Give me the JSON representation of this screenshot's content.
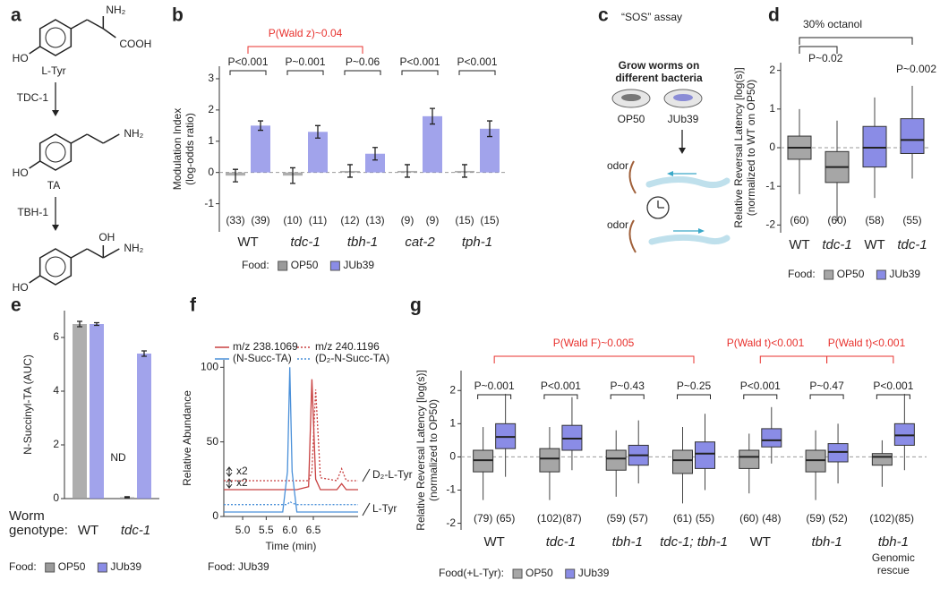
{
  "panel_labels": [
    "a",
    "b",
    "c",
    "d",
    "e",
    "f",
    "g"
  ],
  "pathway": {
    "compounds": [
      {
        "name": "L-Tyr",
        "substituents": [
          "NH₂",
          "COOH",
          "HO"
        ]
      },
      {
        "name": "TA",
        "substituents": [
          "NH₂",
          "HO"
        ]
      },
      {
        "substituents": [
          "OH",
          "NH₂",
          "HO"
        ]
      }
    ],
    "enzymes": [
      "TDC-1",
      "TBH-1"
    ]
  },
  "assay": {
    "title": "“SOS” assay",
    "step": [
      "Grow worms on",
      "different bacteria"
    ],
    "plates": [
      "OP50",
      "JUb39"
    ],
    "odor_labels": [
      "odor",
      "odor"
    ]
  },
  "chart_data": [
    {
      "panel": "b",
      "type": "bar",
      "ylabel": [
        "Modulation Index",
        "(log-odds ratio)"
      ],
      "categories": [
        "WT",
        "tdc-1",
        "tbh-1",
        "cat-2",
        "tph-1"
      ],
      "category_italic": [
        false,
        true,
        true,
        true,
        true
      ],
      "series": [
        {
          "name": "OP50",
          "color": "#9a9a9a",
          "values": [
            -0.1,
            -0.1,
            0.05,
            0.05,
            0.05
          ],
          "errors": [
            0.2,
            0.25,
            0.2,
            0.2,
            0.2
          ],
          "n_labels": [
            "(33)",
            "(10)",
            "(12)",
            "(9)",
            "(15)"
          ]
        },
        {
          "name": "JUb39",
          "color": "#8a8ce6",
          "values": [
            1.5,
            1.3,
            0.6,
            1.8,
            1.4
          ],
          "errors": [
            0.15,
            0.2,
            0.2,
            0.25,
            0.25
          ],
          "n_labels": [
            "(39)",
            "(11)",
            "(13)",
            "(9)",
            "(15)"
          ]
        }
      ],
      "ylim": [
        -1.9,
        3.4
      ],
      "yticks": [
        -1,
        0,
        1,
        2,
        3
      ],
      "pvalues": [
        "P<0.001",
        "P~0.001",
        "P~0.06",
        "P<0.001",
        "P<0.001"
      ],
      "comparisons": [
        "P(Wald z)~0.04"
      ],
      "comparison_color": "#e8322e",
      "legend_title": "Food:"
    },
    {
      "panel": "d",
      "type": "box",
      "title": "30% octanol",
      "ylabel": [
        "Relative Reversal Latency [log(s)]",
        "(normalized to  WT on OP50)"
      ],
      "categories": [
        "WT",
        "tdc-1",
        "WT",
        "tdc-1"
      ],
      "category_italic": [
        false,
        true,
        false,
        true
      ],
      "series": [
        {
          "name": "OP50",
          "color": "#a6a6a6",
          "boxes": [
            {
              "low": -1.2,
              "q1": -0.3,
              "median": 0,
              "q3": 0.3,
              "high": 1.0
            },
            {
              "low": -1.9,
              "q1": -0.9,
              "median": -0.5,
              "q3": -0.1,
              "high": 0.7
            },
            null,
            null
          ],
          "n_labels": [
            "(60)",
            "(60)",
            null,
            null
          ]
        },
        {
          "name": "JUb39",
          "color": "#8a8ce6",
          "boxes": [
            null,
            null,
            {
              "low": -1.3,
              "q1": -0.5,
              "median": 0,
              "q3": 0.55,
              "high": 1.3
            },
            {
              "low": -0.8,
              "q1": -0.15,
              "median": 0.2,
              "q3": 0.75,
              "high": 1.6
            }
          ],
          "n_labels": [
            null,
            null,
            "(58)",
            "(55)"
          ]
        }
      ],
      "ylim": [
        -2.2,
        2.2
      ],
      "yticks": [
        -2,
        -1,
        0,
        1,
        2
      ],
      "comparisons": [
        "P~0.02",
        "P~0.002"
      ],
      "comparison_color": "#222222",
      "legend_title": "Food:"
    },
    {
      "panel": "e",
      "type": "bar",
      "ylabel": [
        "N-Succinyl-TA (AUC)"
      ],
      "xlabel": [
        "Worm",
        "genotype:"
      ],
      "categories": [
        "WT",
        "tdc-1"
      ],
      "category_italic": [
        false,
        true
      ],
      "series": [
        {
          "name": "OP50",
          "color": "#9a9a9a",
          "values": [
            6.5,
            0.05
          ],
          "errors": [
            0.1,
            0.02
          ]
        },
        {
          "name": "JUb39",
          "color": "#8a8ce6",
          "values": [
            6.5,
            5.4
          ],
          "errors": [
            0.05,
            0.1
          ]
        }
      ],
      "ylim": [
        0,
        7
      ],
      "yticks": [
        0,
        2,
        4,
        6
      ],
      "annotations": [
        "ND"
      ],
      "legend_title": "Food:"
    },
    {
      "panel": "f",
      "type": "line",
      "ylabel": [
        "Relative Abundance"
      ],
      "xlabel": "Time (min)",
      "x": [
        4.6,
        5.0,
        5.5,
        5.85,
        5.95,
        6.0,
        6.05,
        6.15,
        6.4,
        6.47,
        6.55,
        6.65,
        7.0,
        7.1,
        7.2,
        7.45
      ],
      "series": [
        {
          "color": "#c84040",
          "dash": "",
          "values": [
            18,
            18,
            18,
            18,
            18,
            18,
            18,
            18,
            20,
            92,
            25,
            18,
            18,
            22,
            18,
            18
          ]
        },
        {
          "color": "#c84040",
          "dash": "2,2",
          "values": [
            24,
            24,
            24,
            24,
            24,
            24,
            24,
            24,
            24,
            30,
            85,
            26,
            24,
            32,
            24,
            24
          ]
        },
        {
          "color": "#4a90d9",
          "dash": "",
          "values": [
            3,
            3,
            3,
            3,
            30,
            100,
            30,
            3,
            3,
            3,
            3,
            3,
            3,
            3,
            3,
            3
          ]
        },
        {
          "color": "#4a90d9",
          "dash": "2,2",
          "values": [
            8,
            8,
            8,
            8,
            8,
            10,
            9,
            8,
            8,
            8,
            8,
            8,
            8,
            8,
            8,
            8
          ]
        }
      ],
      "legend": [
        {
          "label": "m/z  238.1069",
          "sub": "(N-Succ-TA)"
        },
        {
          "label": "m/z  240.1196",
          "sub": "(D₂-N-Succ-TA)"
        }
      ],
      "xlim": [
        4.6,
        7.45
      ],
      "xticks": [
        {
          "value": 5,
          "label": "5.0"
        },
        5.5,
        {
          "value": 6,
          "label": "6.0"
        },
        6.5
      ],
      "ylim": [
        0,
        105
      ],
      "yticks": [
        0,
        50,
        100
      ],
      "annotations": [
        "x2",
        "x2",
        "D₂-L-Tyr",
        "L-Tyr"
      ],
      "food_note": "Food:  JUb39"
    },
    {
      "panel": "g",
      "type": "box",
      "ylabel": [
        "Relative Reversal Latency [log(s)]",
        "(normalized to OP50)"
      ],
      "categories": [
        "WT",
        "tdc-1",
        "tbh-1",
        "tdc-1; tbh-1",
        "WT",
        "tbh-1",
        "tbh-1"
      ],
      "category_italic": [
        false,
        true,
        true,
        true,
        false,
        true,
        true
      ],
      "category_note": [
        "Genomic",
        "rescue"
      ],
      "series": [
        {
          "name": "OP50",
          "color": "#a6a6a6",
          "boxes": [
            {
              "low": -1.3,
              "q1": -0.45,
              "median": -0.1,
              "q3": 0.2,
              "high": 0.9
            },
            {
              "low": -1.3,
              "q1": -0.45,
              "median": -0.05,
              "q3": 0.25,
              "high": 0.9
            },
            {
              "low": -1.2,
              "q1": -0.4,
              "median": -0.05,
              "q3": 0.2,
              "high": 0.8
            },
            {
              "low": -1.4,
              "q1": -0.5,
              "median": -0.1,
              "q3": 0.2,
              "high": 0.9
            },
            {
              "low": -1.1,
              "q1": -0.35,
              "median": 0,
              "q3": 0.2,
              "high": 0.7
            },
            {
              "low": -1.3,
              "q1": -0.45,
              "median": -0.1,
              "q3": 0.2,
              "high": 0.8
            },
            {
              "low": -0.9,
              "q1": -0.25,
              "median": 0,
              "q3": 0.1,
              "high": 0.5
            }
          ],
          "n_labels": [
            "(79)",
            "(102)",
            "(59)",
            "(61)",
            "(60)",
            "(59)",
            "(102)"
          ]
        },
        {
          "name": "JUb39",
          "color": "#8a8ce6",
          "boxes": [
            {
              "low": -0.6,
              "q1": 0.25,
              "median": 0.6,
              "q3": 1.0,
              "high": 1.9
            },
            {
              "low": -0.4,
              "q1": 0.2,
              "median": 0.55,
              "q3": 0.95,
              "high": 1.8
            },
            {
              "low": -0.8,
              "q1": -0.25,
              "median": 0.05,
              "q3": 0.35,
              "high": 1.1
            },
            {
              "low": -1.0,
              "q1": -0.35,
              "median": 0.1,
              "q3": 0.45,
              "high": 1.3
            },
            {
              "low": -0.2,
              "q1": 0.3,
              "median": 0.5,
              "q3": 0.85,
              "high": 1.5
            },
            {
              "low": -0.8,
              "q1": -0.15,
              "median": 0.15,
              "q3": 0.4,
              "high": 1.0
            },
            {
              "low": -0.4,
              "q1": 0.35,
              "median": 0.65,
              "q3": 1.0,
              "high": 1.9
            }
          ],
          "n_labels": [
            "(65)",
            "(87)",
            "(57)",
            "(55)",
            "(48)",
            "(52)",
            "(85)"
          ]
        }
      ],
      "ylim": [
        -2.2,
        2.6
      ],
      "yticks": [
        -2,
        -1,
        0,
        1,
        2
      ],
      "pvalues": [
        "P~0.001",
        "P<0.001",
        "P~0.43",
        "P~0.25",
        "P<0.001",
        "P~0.47",
        "P<0.001"
      ],
      "comparisons": [
        "P(Wald F)~0.005",
        "P(Wald t)<0.001",
        "P(Wald t)<0.001"
      ],
      "comparison_color": "#e8322e",
      "legend_title": "Food(+L-Tyr):"
    }
  ]
}
